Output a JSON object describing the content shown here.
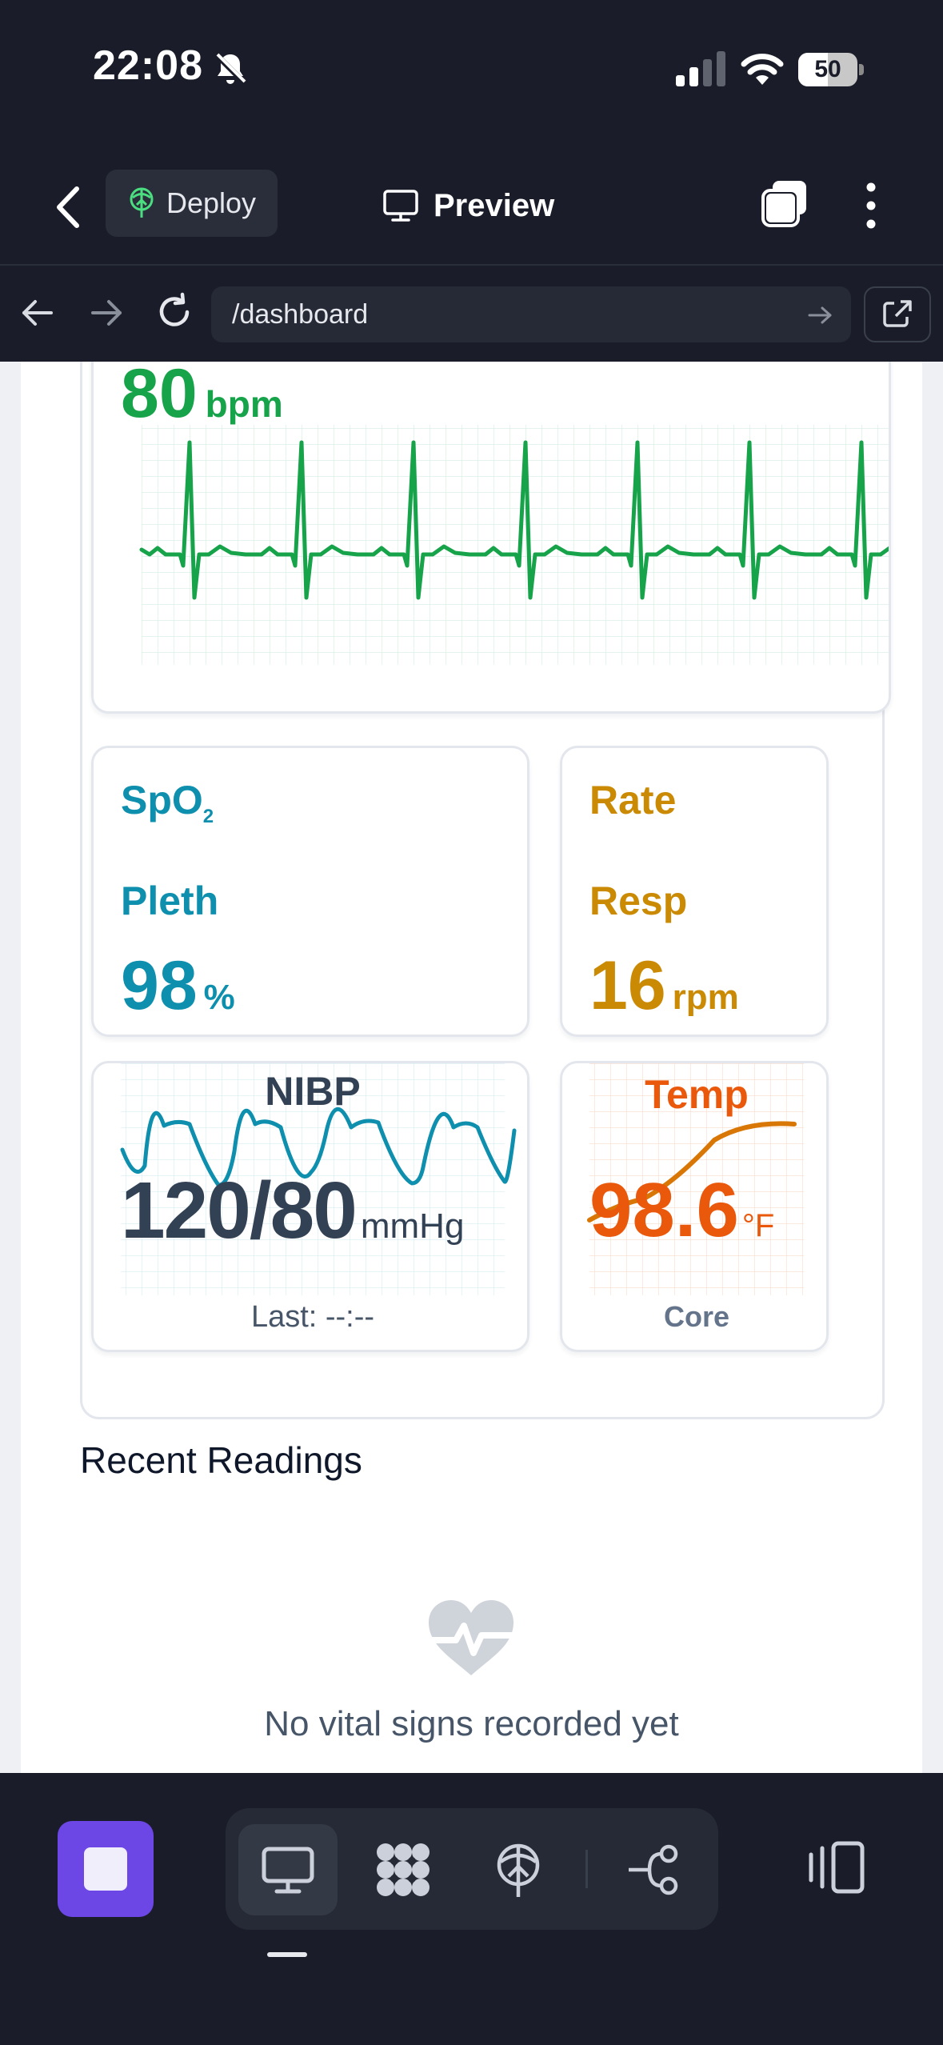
{
  "status_bar": {
    "time": "22:08",
    "battery": 50
  },
  "header": {
    "deploy_label": "Deploy",
    "preview_label": "Preview"
  },
  "url_bar": {
    "url": "/dashboard"
  },
  "vitals": {
    "heart_rate": {
      "value": "80",
      "unit": "bpm",
      "color": "#16a34a"
    },
    "spo2": {
      "title_main": "SpO",
      "title_sub": "2",
      "subtitle": "Pleth",
      "value": "98",
      "unit": "%",
      "color": "#0e8fae"
    },
    "resp": {
      "title": "Rate",
      "subtitle": "Resp",
      "value": "16",
      "unit": "rpm",
      "color": "#ca8a04"
    },
    "nibp": {
      "title": "NIBP",
      "value": "120/80",
      "unit": "mmHg",
      "footer": "Last: --:--",
      "color": "#334155",
      "wave_color": "#0e8fae"
    },
    "temp": {
      "title": "Temp",
      "value": "98.6",
      "unit": "°F",
      "footer": "Core",
      "color": "#ea580c",
      "wave_color": "#d97706"
    }
  },
  "recent": {
    "title": "Recent Readings",
    "empty_text": "No vital signs recorded yet"
  }
}
